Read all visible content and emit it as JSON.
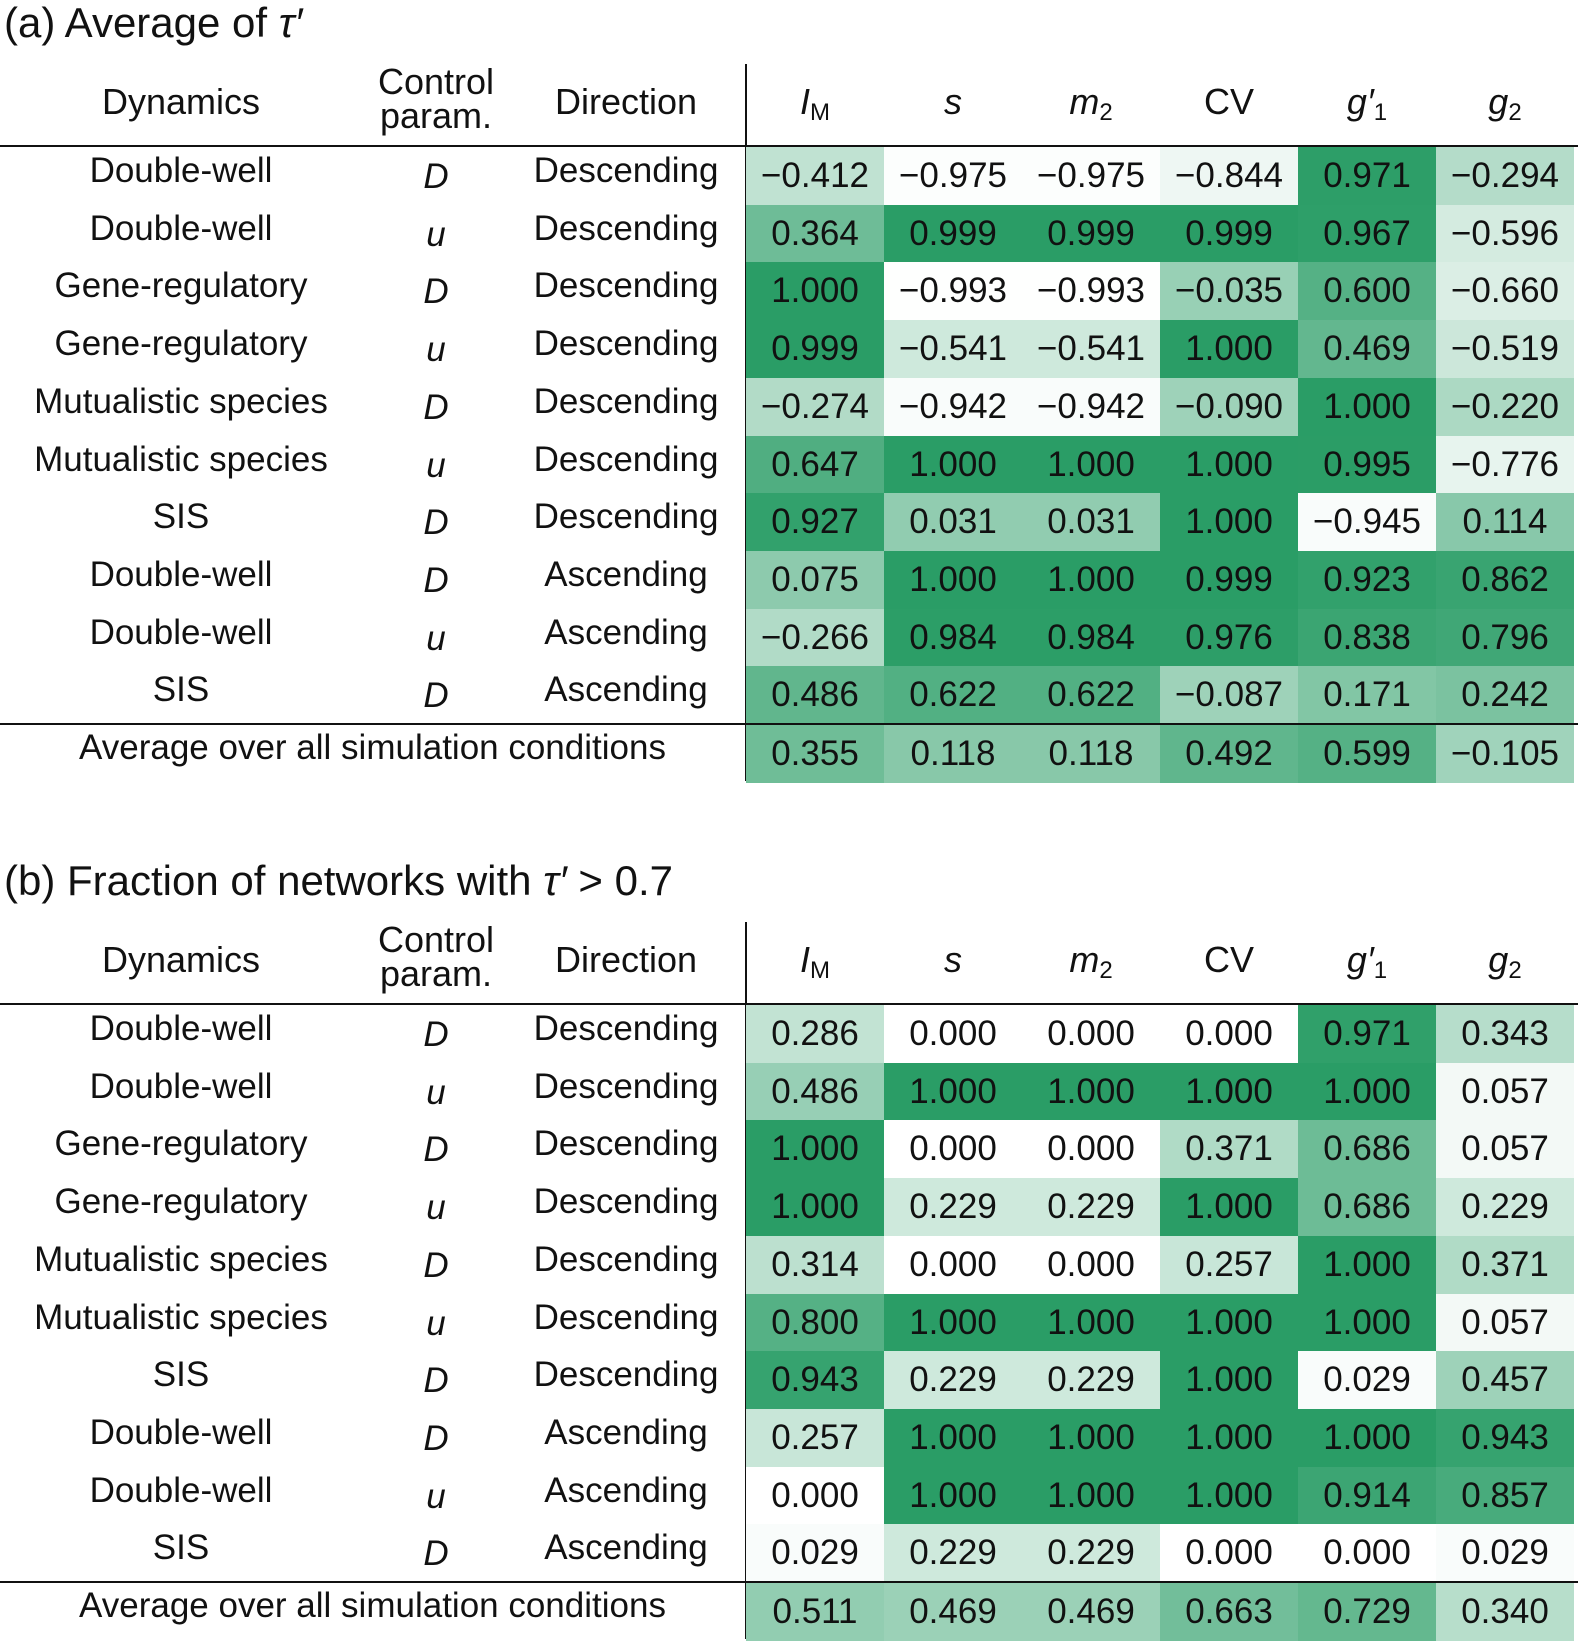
{
  "columns": {
    "dynamics": "Dynamics",
    "control_line1": "Control",
    "control_line2": "param.",
    "direction": "Direction",
    "metrics": [
      {
        "base": "I",
        "sub": "M"
      },
      {
        "base": "s",
        "sub": ""
      },
      {
        "base": "m",
        "sub": "2"
      },
      {
        "base": "CV",
        "sub": "",
        "upright": true
      },
      {
        "base": "g′",
        "sub": "1"
      },
      {
        "base": "g",
        "sub": "2"
      }
    ]
  },
  "rows": [
    {
      "dynamics": "Double-well",
      "param": "D",
      "direction": "Descending"
    },
    {
      "dynamics": "Double-well",
      "param": "u",
      "direction": "Descending"
    },
    {
      "dynamics": "Gene-regulatory",
      "param": "D",
      "direction": "Descending"
    },
    {
      "dynamics": "Gene-regulatory",
      "param": "u",
      "direction": "Descending"
    },
    {
      "dynamics": "Mutualistic species",
      "param": "D",
      "direction": "Descending"
    },
    {
      "dynamics": "Mutualistic species",
      "param": "u",
      "direction": "Descending"
    },
    {
      "dynamics": "SIS",
      "param": "D",
      "direction": "Descending"
    },
    {
      "dynamics": "Double-well",
      "param": "D",
      "direction": "Ascending"
    },
    {
      "dynamics": "Double-well",
      "param": "u",
      "direction": "Ascending"
    },
    {
      "dynamics": "SIS",
      "param": "D",
      "direction": "Ascending"
    }
  ],
  "average_label": "Average over all simulation conditions",
  "panels": [
    {
      "title_prefix": "(a) Average of ",
      "title_tau": "τ′",
      "title_suffix": "",
      "values": [
        [
          "−0.412",
          "−0.975",
          "−0.975",
          "−0.844",
          "0.971",
          "−0.294"
        ],
        [
          "0.364",
          "0.999",
          "0.999",
          "0.999",
          "0.967",
          "−0.596"
        ],
        [
          "1.000",
          "−0.993",
          "−0.993",
          "−0.035",
          "0.600",
          "−0.660"
        ],
        [
          "0.999",
          "−0.541",
          "−0.541",
          "1.000",
          "0.469",
          "−0.519"
        ],
        [
          "−0.274",
          "−0.942",
          "−0.942",
          "−0.090",
          "1.000",
          "−0.220"
        ],
        [
          "0.647",
          "1.000",
          "1.000",
          "1.000",
          "0.995",
          "−0.776"
        ],
        [
          "0.927",
          "0.031",
          "0.031",
          "1.000",
          "−0.945",
          "0.114"
        ],
        [
          "0.075",
          "1.000",
          "1.000",
          "0.999",
          "0.923",
          "0.862"
        ],
        [
          "−0.266",
          "0.984",
          "0.984",
          "0.976",
          "0.838",
          "0.796"
        ],
        [
          "0.486",
          "0.622",
          "0.622",
          "−0.087",
          "0.171",
          "0.242"
        ]
      ],
      "averages": [
        "0.355",
        "0.118",
        "0.118",
        "0.492",
        "0.599",
        "−0.105"
      ],
      "color_scale": {
        "min": -1,
        "max": 1
      }
    },
    {
      "title_prefix": "(b) Fraction of networks with ",
      "title_tau": "τ′",
      "title_suffix": " > 0.7",
      "values": [
        [
          "0.286",
          "0.000",
          "0.000",
          "0.000",
          "0.971",
          "0.343"
        ],
        [
          "0.486",
          "1.000",
          "1.000",
          "1.000",
          "1.000",
          "0.057"
        ],
        [
          "1.000",
          "0.000",
          "0.000",
          "0.371",
          "0.686",
          "0.057"
        ],
        [
          "1.000",
          "0.229",
          "0.229",
          "1.000",
          "0.686",
          "0.229"
        ],
        [
          "0.314",
          "0.000",
          "0.000",
          "0.257",
          "1.000",
          "0.371"
        ],
        [
          "0.800",
          "1.000",
          "1.000",
          "1.000",
          "1.000",
          "0.057"
        ],
        [
          "0.943",
          "0.229",
          "0.229",
          "1.000",
          "0.029",
          "0.457"
        ],
        [
          "0.257",
          "1.000",
          "1.000",
          "1.000",
          "1.000",
          "0.943"
        ],
        [
          "0.000",
          "1.000",
          "1.000",
          "1.000",
          "0.914",
          "0.857"
        ],
        [
          "0.029",
          "0.229",
          "0.229",
          "0.000",
          "0.000",
          "0.029"
        ]
      ],
      "averages": [
        "0.511",
        "0.469",
        "0.469",
        "0.663",
        "0.729",
        "0.340"
      ],
      "color_scale": {
        "min": 0,
        "max": 1
      }
    }
  ],
  "colors": {
    "low": "#ffffff",
    "high": "#2a9d66",
    "text": "#111111"
  }
}
